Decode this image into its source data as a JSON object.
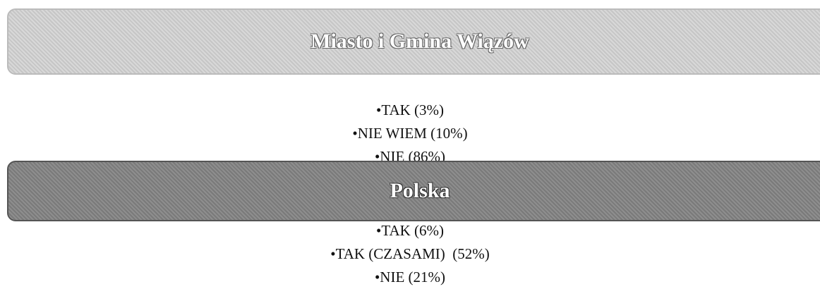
{
  "sections": [
    {
      "title": "Miasto i Gmina Wiązów",
      "items": [
        "•TAK (3%)",
        "•NIE WIEM (10%)",
        "•NIE (86%)"
      ]
    },
    {
      "title": "Polska",
      "items": [
        "•TAK (6%)",
        "•TAK (CZASAMI)  (52%)",
        "•NIE (21%)"
      ]
    }
  ]
}
